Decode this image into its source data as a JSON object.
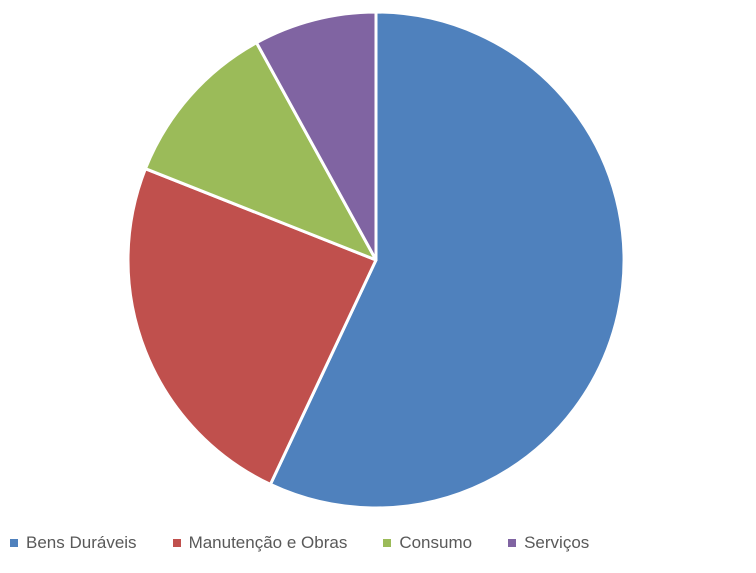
{
  "chart_data": {
    "type": "pie",
    "title": "",
    "start_angle_deg": 0,
    "direction": "clockwise",
    "legend_position": "bottom",
    "slice_border_color": "#ffffff",
    "series": [
      {
        "name": "Bens Duráveis",
        "value": 57,
        "color": "#4F81BD"
      },
      {
        "name": "Manutenção e Obras",
        "value": 24,
        "color": "#C0504D"
      },
      {
        "name": "Consumo",
        "value": 11,
        "color": "#9BBB59"
      },
      {
        "name": "Serviços",
        "value": 8,
        "color": "#8064A2"
      }
    ]
  },
  "legend": {
    "items": [
      {
        "label": "Bens Duráveis",
        "color": "#4F81BD"
      },
      {
        "label": "Manutenção e Obras",
        "color": "#C0504D"
      },
      {
        "label": "Consumo",
        "color": "#9BBB59"
      },
      {
        "label": "Serviços",
        "color": "#8064A2"
      }
    ]
  }
}
